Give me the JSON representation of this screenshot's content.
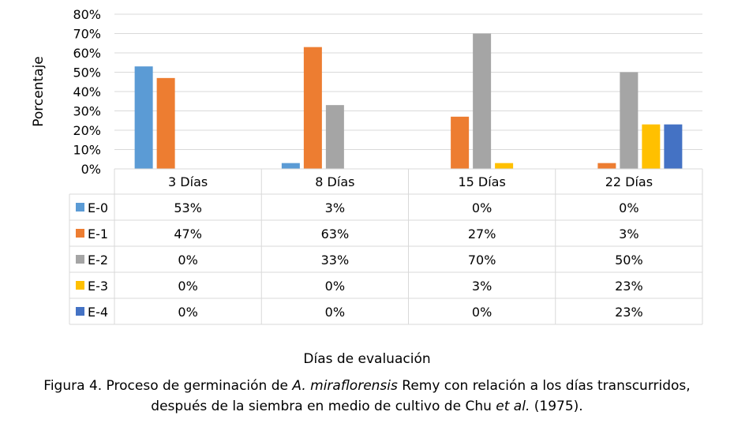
{
  "chart_data": {
    "type": "bar",
    "categories": [
      "3 Días",
      "8 Días",
      "15 Días",
      "22 Días"
    ],
    "series": [
      {
        "name": "E-0",
        "values": [
          53,
          3,
          0,
          0
        ],
        "labels": [
          "53%",
          "3%",
          "0%",
          "0%"
        ],
        "color": "#5b9bd5"
      },
      {
        "name": "E-1",
        "values": [
          47,
          63,
          27,
          3
        ],
        "labels": [
          "47%",
          "63%",
          "27%",
          "3%"
        ],
        "color": "#ed7d31"
      },
      {
        "name": "E-2",
        "values": [
          0,
          33,
          70,
          50
        ],
        "labels": [
          "0%",
          "33%",
          "70%",
          "50%"
        ],
        "color": "#a5a5a5"
      },
      {
        "name": "E-3",
        "values": [
          0,
          0,
          3,
          23
        ],
        "labels": [
          "0%",
          "0%",
          "3%",
          "23%"
        ],
        "color": "#ffc000"
      },
      {
        "name": "E-4",
        "values": [
          0,
          0,
          0,
          23
        ],
        "labels": [
          "0%",
          "0%",
          "0%",
          "23%"
        ],
        "color": "#4472c4"
      }
    ],
    "ylabel": "Porcentaje",
    "xlabel": "Días de evaluación",
    "ylim": [
      0,
      80
    ],
    "yticks": [
      "0%",
      "10%",
      "20%",
      "30%",
      "40%",
      "50%",
      "60%",
      "70%",
      "80%"
    ],
    "grid": true,
    "legend": "data-table"
  },
  "caption": {
    "line1_pre": "Figura 4. Proceso de germinación de ",
    "line1_italic": "A. miraflorensis",
    "line1_post": " Remy con relación a los días transcurridos,",
    "line2_pre": "después de la siembra en medio de cultivo de Chu ",
    "line2_italic": "et al.",
    "line2_post": " (1975)."
  }
}
